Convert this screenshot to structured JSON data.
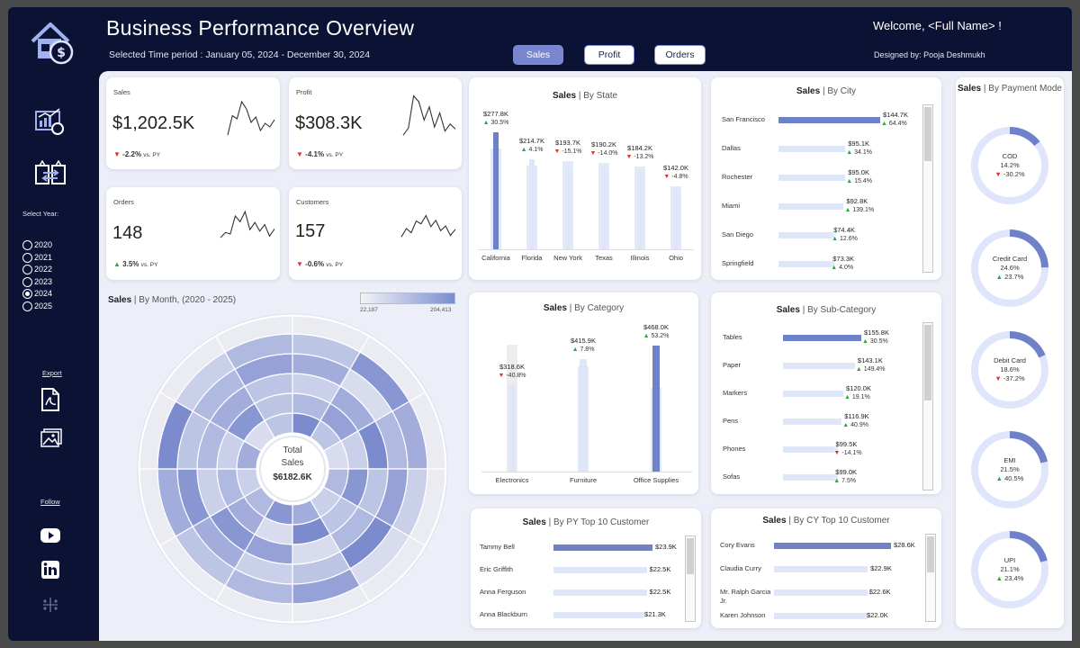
{
  "header": {
    "title": "Business Performance Overview",
    "time_period": "Selected Time period : January 05, 2024 - December 30, 2024",
    "welcome": "Welcome, <Full Name> !",
    "designed_prefix": "Designed by:",
    "designed_name": "Pooja Deshmukh",
    "tabs": [
      {
        "label": "Sales",
        "active": true
      },
      {
        "label": "Profit",
        "active": false
      },
      {
        "label": "Orders",
        "active": false
      }
    ]
  },
  "sidebar": {
    "icons": [
      "house-dollar-icon",
      "analytics-report-icon",
      "transfer-boxes-icon",
      "pdf-icon",
      "image-icon",
      "youtube-icon",
      "linkedin-icon",
      "tableau-icon"
    ],
    "select_year_label": "Select Year:",
    "years": [
      {
        "label": "2020",
        "selected": false
      },
      {
        "label": "2021",
        "selected": false
      },
      {
        "label": "2022",
        "selected": false
      },
      {
        "label": "2023",
        "selected": false
      },
      {
        "label": "2024",
        "selected": true
      },
      {
        "label": "2025",
        "selected": false
      }
    ],
    "export_label": "Export",
    "follow_label": "Follow"
  },
  "kpis": [
    {
      "label": "Sales",
      "value": "$1,202.5K",
      "delta": "-2.2%",
      "delta_suffix": "vs. PY",
      "direction": "down",
      "spark": [
        12,
        55,
        48,
        86,
        70,
        40,
        52,
        22,
        38,
        30,
        46
      ]
    },
    {
      "label": "Profit",
      "value": "$308.3K",
      "delta": "-4.1%",
      "delta_suffix": "vs. PY",
      "direction": "down",
      "spark": [
        14,
        28,
        92,
        80,
        44,
        70,
        30,
        58,
        22,
        36,
        26
      ]
    },
    {
      "label": "Orders",
      "value": "148",
      "delta": "3.5%",
      "delta_suffix": "vs. PY",
      "direction": "up",
      "spark": [
        20,
        34,
        30,
        80,
        64,
        92,
        42,
        62,
        38,
        56,
        24,
        44
      ]
    },
    {
      "label": "Customers",
      "value": "157",
      "delta": "-0.6%",
      "delta_suffix": "vs. PY",
      "direction": "down",
      "spark": [
        18,
        42,
        30,
        64,
        56,
        80,
        48,
        66,
        36,
        50,
        22,
        40
      ]
    }
  ],
  "sales_by_month": {
    "title_bold": "Sales",
    "title_rest": "| By Month, (2020 - 2025)",
    "legend_min": "22,187",
    "legend_max": "204,413",
    "center_label_1": "Total",
    "center_label_2": "Sales",
    "center_value": "$6182.6K",
    "rings": [
      [
        0.9,
        0.4,
        0.2,
        0.5,
        0.3,
        0.6,
        0.8,
        0.5,
        0.3,
        0.6,
        0.2,
        0.4
      ],
      [
        0.5,
        0.7,
        0.3,
        0.8,
        0.4,
        0.9,
        0.2,
        0.6,
        0.5,
        0.3,
        0.8,
        0.4
      ],
      [
        0.3,
        0.6,
        0.9,
        0.4,
        0.5,
        0.2,
        0.7,
        0.8,
        0.3,
        0.5,
        0.6,
        0.4
      ],
      [
        0.6,
        0.2,
        0.5,
        0.7,
        0.9,
        0.4,
        0.3,
        0.6,
        0.8,
        0.4,
        0.5,
        0.7
      ],
      [
        0.4,
        0.8,
        0.6,
        0.3,
        0.2,
        0.7,
        0.5,
        0.4,
        0.6,
        0.9,
        0.3,
        0.5
      ],
      [
        0.05,
        0.1,
        0.05,
        0.08,
        0.05,
        0.1,
        0.06,
        0.05,
        0.1,
        0.05,
        0.08,
        0.06
      ]
    ]
  },
  "sales_by_state": {
    "title_bold": "Sales",
    "title_rest": "| By State",
    "items": [
      {
        "name": "California",
        "value": "$277.8K",
        "amount": 277.8,
        "delta": "30.5%",
        "direction": "up",
        "py": 240
      },
      {
        "name": "Florida",
        "value": "$214.7K",
        "amount": 214.7,
        "delta": "4.1%",
        "direction": "up",
        "py": 200
      },
      {
        "name": "New York",
        "value": "$193.7K",
        "amount": 193.7,
        "delta": "-15.1%",
        "direction": "down",
        "py": 210
      },
      {
        "name": "Texas",
        "value": "$190.2K",
        "amount": 190.2,
        "delta": "-14.0%",
        "direction": "down",
        "py": 205
      },
      {
        "name": "Illinois",
        "value": "$184.2K",
        "amount": 184.2,
        "delta": "-13.2%",
        "direction": "down",
        "py": 198
      },
      {
        "name": "Ohio",
        "value": "$142.0K",
        "amount": 142.0,
        "delta": "-4.8%",
        "direction": "down",
        "py": 150
      }
    ]
  },
  "sales_by_city": {
    "title_bold": "Sales",
    "title_rest": "| By City",
    "items": [
      {
        "name": "San Francisco",
        "value": "$144.7K",
        "amount": 144.7,
        "delta": "64.4%",
        "direction": "up"
      },
      {
        "name": "Dallas",
        "value": "$95.1K",
        "amount": 95.1,
        "delta": "34.1%",
        "direction": "up"
      },
      {
        "name": "Rochester",
        "value": "$95.0K",
        "amount": 95.0,
        "delta": "15.4%",
        "direction": "up"
      },
      {
        "name": "Miami",
        "value": "$92.8K",
        "amount": 92.8,
        "delta": "139.1%",
        "direction": "up"
      },
      {
        "name": "San Diego",
        "value": "$74.4K",
        "amount": 74.4,
        "delta": "12.6%",
        "direction": "up"
      },
      {
        "name": "Springfield",
        "value": "$73.3K",
        "amount": 73.3,
        "delta": "4.0%",
        "direction": "up"
      }
    ]
  },
  "sales_by_category": {
    "title_bold": "Sales",
    "title_rest": "| By Category",
    "items": [
      {
        "name": "Electronics",
        "value": "$318.6K",
        "amount": 318.6,
        "delta": "-40.8%",
        "direction": "down",
        "py": 470
      },
      {
        "name": "Furniture",
        "value": "$415.9K",
        "amount": 415.9,
        "delta": "7.8%",
        "direction": "up",
        "py": 390
      },
      {
        "name": "Office Supplies",
        "value": "$468.0K",
        "amount": 468.0,
        "delta": "53.2%",
        "direction": "up",
        "py": 310
      }
    ]
  },
  "sales_by_subcategory": {
    "title_bold": "Sales",
    "title_rest": "| By Sub-Category",
    "items": [
      {
        "name": "Tables",
        "value": "$155.8K",
        "amount": 155.8,
        "delta": "30.5%",
        "direction": "up"
      },
      {
        "name": "Paper",
        "value": "$143.1K",
        "amount": 143.1,
        "delta": "149.4%",
        "direction": "up"
      },
      {
        "name": "Markers",
        "value": "$120.0K",
        "amount": 120.0,
        "delta": "19.1%",
        "direction": "up"
      },
      {
        "name": "Pens",
        "value": "$116.9K",
        "amount": 116.9,
        "delta": "40.9%",
        "direction": "up"
      },
      {
        "name": "Phones",
        "value": "$99.5K",
        "amount": 99.5,
        "delta": "-14.1%",
        "direction": "down"
      },
      {
        "name": "Sofas",
        "value": "$99.0K",
        "amount": 99.0,
        "delta": "7.5%",
        "direction": "up"
      }
    ]
  },
  "py_top_customers": {
    "title_bold": "Sales",
    "title_rest": "| By PY Top 10 Customer",
    "items": [
      {
        "name": "Tammy Bell",
        "value": "$23.9K",
        "amount": 23.9
      },
      {
        "name": "Eric Griffith",
        "value": "$22.5K",
        "amount": 22.5
      },
      {
        "name": "Anna Ferguson",
        "value": "$22.5K",
        "amount": 22.5
      },
      {
        "name": "Anna Blackburn",
        "value": "$21.3K",
        "amount": 21.3
      }
    ]
  },
  "cy_top_customers": {
    "title_bold": "Sales",
    "title_rest": "| By CY Top 10 Customer",
    "items": [
      {
        "name": "Cory Evans",
        "value": "$28.6K",
        "amount": 28.6
      },
      {
        "name": "Claudia Curry",
        "value": "$22.9K",
        "amount": 22.9
      },
      {
        "name": "Mr. Ralph Garcia Jr.",
        "value": "$22.6K",
        "amount": 22.6
      },
      {
        "name": "Karen Johnson",
        "value": "$22.0K",
        "amount": 22.0
      }
    ]
  },
  "payment_mode": {
    "title_bold": "Sales",
    "title_rest": "| By Payment Mode",
    "items": [
      {
        "name": "COD",
        "share": "14.2%",
        "share_value": 0.142,
        "delta": "-30.2%",
        "direction": "down"
      },
      {
        "name": "Credit Card",
        "share": "24.6%",
        "share_value": 0.246,
        "delta": "23.7%",
        "direction": "up"
      },
      {
        "name": "Debit Card",
        "share": "18.6%",
        "share_value": 0.186,
        "delta": "-37.2%",
        "direction": "down"
      },
      {
        "name": "EMI",
        "share": "21.5%",
        "share_value": 0.215,
        "delta": "40.5%",
        "direction": "up"
      },
      {
        "name": "UPI",
        "share": "21.1%",
        "share_value": 0.211,
        "delta": "23.4%",
        "direction": "up"
      }
    ]
  },
  "colors": {
    "bar_dark": "#6f81c8",
    "bar_light": "#e2e9f8",
    "up": "#2aa843",
    "down": "#e0312d",
    "navy": "#0c1234"
  }
}
